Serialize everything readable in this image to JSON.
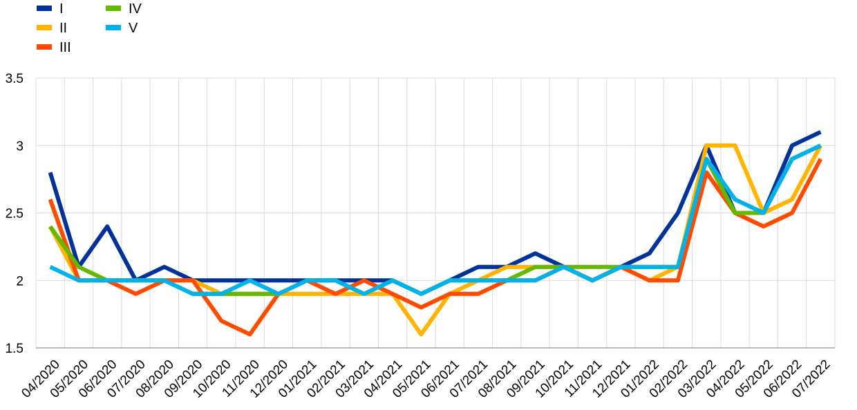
{
  "chart_data": {
    "type": "line",
    "title": "",
    "xlabel": "",
    "ylabel": "",
    "ylim": [
      1.5,
      3.5
    ],
    "y_ticks": [
      "1.5",
      "2",
      "2.5",
      "3",
      "3.5"
    ],
    "grid": true,
    "legend_position": "top-left",
    "categories": [
      "04/2020",
      "05/2020",
      "06/2020",
      "07/2020",
      "08/2020",
      "09/2020",
      "10/2020",
      "11/2020",
      "12/2020",
      "01/2021",
      "02/2021",
      "03/2021",
      "04/2021",
      "05/2021",
      "06/2021",
      "07/2021",
      "08/2021",
      "09/2021",
      "10/2021",
      "11/2021",
      "12/2021",
      "01/2022",
      "02/2022",
      "03/2022",
      "04/2022",
      "05/2022",
      "06/2022",
      "07/2022"
    ],
    "series": [
      {
        "name": "I",
        "color": "#003299",
        "values": [
          2.8,
          2.1,
          2.4,
          2.0,
          2.1,
          2.0,
          2.0,
          2.0,
          2.0,
          2.0,
          2.0,
          2.0,
          2.0,
          1.9,
          2.0,
          2.1,
          2.1,
          2.2,
          2.1,
          2.0,
          2.1,
          2.2,
          2.5,
          3.0,
          2.5,
          2.5,
          3.0,
          3.1
        ]
      },
      {
        "name": "II",
        "color": "#FFB400",
        "values": [
          2.4,
          2.0,
          2.0,
          2.0,
          2.0,
          2.0,
          1.9,
          1.9,
          1.9,
          1.9,
          1.9,
          1.9,
          1.9,
          1.6,
          1.9,
          2.0,
          2.1,
          2.1,
          2.1,
          2.0,
          2.1,
          2.0,
          2.1,
          3.0,
          3.0,
          2.5,
          2.6,
          3.0
        ]
      },
      {
        "name": "III",
        "color": "#FF4B00",
        "values": [
          2.6,
          2.0,
          2.0,
          1.9,
          2.0,
          2.0,
          1.7,
          1.6,
          1.9,
          2.0,
          1.9,
          2.0,
          1.9,
          1.8,
          1.9,
          1.9,
          2.0,
          2.0,
          2.1,
          2.0,
          2.1,
          2.0,
          2.0,
          2.8,
          2.5,
          2.4,
          2.5,
          2.9
        ]
      },
      {
        "name": "IV",
        "color": "#65B800",
        "values": [
          2.4,
          2.1,
          2.0,
          2.0,
          2.0,
          1.9,
          1.9,
          1.9,
          1.9,
          2.0,
          2.0,
          1.9,
          2.0,
          1.9,
          2.0,
          2.0,
          2.0,
          2.1,
          2.1,
          2.1,
          2.1,
          2.1,
          2.1,
          2.9,
          2.5,
          2.5,
          2.9,
          3.0
        ]
      },
      {
        "name": "V",
        "color": "#00B1EA",
        "values": [
          2.1,
          2.0,
          2.0,
          2.0,
          2.0,
          1.9,
          1.9,
          2.0,
          1.9,
          2.0,
          2.0,
          1.9,
          2.0,
          1.9,
          2.0,
          2.0,
          2.0,
          2.0,
          2.1,
          2.0,
          2.1,
          2.1,
          2.1,
          2.9,
          2.6,
          2.5,
          2.9,
          3.0
        ]
      }
    ]
  }
}
